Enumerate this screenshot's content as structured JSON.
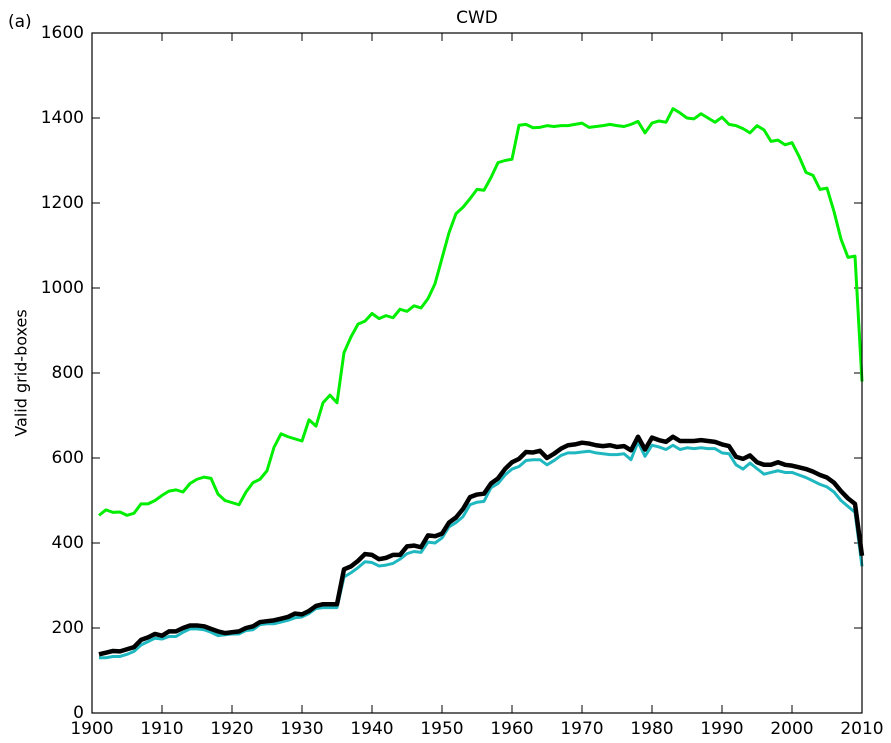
{
  "chart_data": {
    "type": "line",
    "panel_label": "(a)",
    "title": "CWD",
    "y_label": "Valid grid-boxes",
    "x": [
      1901,
      1902,
      1903,
      1904,
      1905,
      1906,
      1907,
      1908,
      1909,
      1910,
      1911,
      1912,
      1913,
      1914,
      1915,
      1916,
      1917,
      1918,
      1919,
      1920,
      1921,
      1922,
      1923,
      1924,
      1925,
      1926,
      1927,
      1928,
      1929,
      1930,
      1931,
      1932,
      1933,
      1934,
      1935,
      1936,
      1937,
      1938,
      1939,
      1940,
      1941,
      1942,
      1943,
      1944,
      1945,
      1946,
      1947,
      1948,
      1949,
      1950,
      1951,
      1952,
      1953,
      1954,
      1955,
      1956,
      1957,
      1958,
      1959,
      1960,
      1961,
      1962,
      1963,
      1964,
      1965,
      1966,
      1967,
      1968,
      1969,
      1970,
      1971,
      1972,
      1973,
      1974,
      1975,
      1976,
      1977,
      1978,
      1979,
      1980,
      1981,
      1982,
      1983,
      1984,
      1985,
      1986,
      1987,
      1988,
      1989,
      1990,
      1991,
      1992,
      1993,
      1994,
      1995,
      1996,
      1997,
      1998,
      1999,
      2000,
      2001,
      2002,
      2003,
      2004,
      2005,
      2006,
      2007,
      2008,
      2009,
      2010
    ],
    "series": [
      {
        "color": "#00ee00",
        "width": 3,
        "values": [
          465,
          478,
          472,
          473,
          465,
          470,
          492,
          492,
          500,
          512,
          522,
          525,
          520,
          540,
          550,
          555,
          552,
          515,
          500,
          495,
          490,
          520,
          542,
          550,
          570,
          625,
          657,
          650,
          645,
          640,
          690,
          675,
          730,
          748,
          730,
          848,
          885,
          915,
          922,
          940,
          928,
          935,
          930,
          950,
          945,
          958,
          953,
          975,
          1010,
          1070,
          1130,
          1175,
          1190,
          1210,
          1232,
          1230,
          1260,
          1295,
          1300,
          1303,
          1383,
          1385,
          1377,
          1378,
          1382,
          1380,
          1382,
          1382,
          1385,
          1388,
          1378,
          1380,
          1382,
          1385,
          1382,
          1380,
          1385,
          1392,
          1365,
          1388,
          1393,
          1390,
          1422,
          1412,
          1400,
          1398,
          1410,
          1400,
          1390,
          1402,
          1385,
          1382,
          1375,
          1365,
          1382,
          1372,
          1345,
          1348,
          1337,
          1342,
          1310,
          1272,
          1265,
          1232,
          1235,
          1180,
          1115,
          1072,
          1075,
          780
        ]
      },
      {
        "color": "#20b8c0",
        "width": 3,
        "values": [
          130,
          130,
          133,
          133,
          138,
          145,
          160,
          168,
          176,
          174,
          180,
          180,
          190,
          198,
          198,
          196,
          190,
          182,
          184,
          186,
          186,
          194,
          196,
          208,
          210,
          210,
          214,
          218,
          224,
          226,
          234,
          246,
          248,
          248,
          248,
          320,
          330,
          342,
          356,
          354,
          346,
          348,
          352,
          362,
          375,
          380,
          378,
          402,
          400,
          412,
          438,
          448,
          462,
          490,
          496,
          498,
          530,
          540,
          560,
          574,
          580,
          594,
          596,
          596,
          584,
          594,
          606,
          612,
          612,
          614,
          616,
          612,
          610,
          608,
          608,
          610,
          596,
          638,
          604,
          630,
          626,
          620,
          630,
          620,
          624,
          622,
          624,
          622,
          622,
          612,
          610,
          584,
          574,
          588,
          575,
          562,
          566,
          570,
          566,
          566,
          560,
          554,
          546,
          538,
          532,
          520,
          500,
          486,
          472,
          345
        ]
      },
      {
        "color": "#000000",
        "width": 4.5,
        "values": [
          138,
          142,
          146,
          145,
          150,
          155,
          172,
          178,
          186,
          182,
          192,
          192,
          200,
          206,
          206,
          204,
          198,
          192,
          188,
          190,
          192,
          200,
          204,
          214,
          216,
          218,
          222,
          226,
          234,
          232,
          240,
          252,
          256,
          256,
          256,
          338,
          345,
          358,
          374,
          372,
          362,
          365,
          372,
          372,
          392,
          394,
          390,
          418,
          416,
          422,
          448,
          460,
          480,
          508,
          514,
          516,
          540,
          552,
          574,
          590,
          598,
          614,
          613,
          617,
          600,
          610,
          622,
          630,
          632,
          636,
          634,
          630,
          628,
          630,
          626,
          628,
          618,
          650,
          620,
          648,
          642,
          638,
          650,
          640,
          640,
          640,
          642,
          640,
          638,
          632,
          628,
          603,
          598,
          606,
          590,
          584,
          584,
          590,
          584,
          582,
          578,
          574,
          568,
          560,
          554,
          542,
          522,
          505,
          492,
          370
        ]
      }
    ],
    "xlim": [
      1900,
      2010
    ],
    "ylim": [
      0,
      1600
    ],
    "xticks": [
      1900,
      1910,
      1920,
      1930,
      1940,
      1950,
      1960,
      1970,
      1980,
      1990,
      2000,
      2010
    ],
    "yticks": [
      0,
      200,
      400,
      600,
      800,
      1000,
      1200,
      1400,
      1600
    ],
    "grid": false
  }
}
